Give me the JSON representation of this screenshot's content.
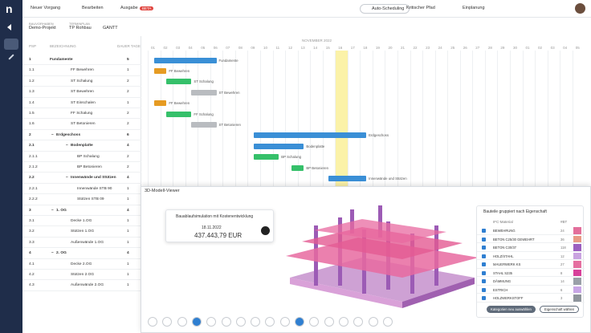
{
  "toolbar": {
    "new": "Neuer Vorgang",
    "edit": "Bearbeiten",
    "export": "Ausgabe",
    "badge": "BETA",
    "auto": "Auto-Scheduling",
    "critical": "Kritischer Pfad",
    "plan": "Einplanung"
  },
  "breadcrumb": {
    "project_label": "BAUVORHABEN",
    "project": "Demo-Projekt",
    "plan_label": "TERMINPLAN",
    "plan": "TP Rohbau",
    "view": "GANTT"
  },
  "table": {
    "headers": [
      "PSP",
      "Bezeichnung",
      "Dauer Tage"
    ],
    "rows": [
      [
        "1",
        "Fundamente",
        5
      ],
      [
        "1.1",
        "FF Bewehren",
        1
      ],
      [
        "1.2",
        "ST Schalung",
        2
      ],
      [
        "1.3",
        "ST Bewehren",
        2
      ],
      [
        "1.4",
        "ST Einschalen",
        1
      ],
      [
        "1.5",
        "FF Schalung",
        2
      ],
      [
        "1.6",
        "ST Betonieren",
        2
      ],
      [
        "2",
        "Erdgeschoss",
        6
      ],
      [
        "2.1",
        "Bodenplatte",
        4
      ],
      [
        "2.1.1",
        "BP Schalung",
        2
      ],
      [
        "2.1.2",
        "BP Betonieren",
        2
      ],
      [
        "2.2",
        "Innenwände und Stützen",
        4
      ],
      [
        "2.2.1",
        "Innenwände STB 90",
        1
      ],
      [
        "2.2.2",
        "Stützen STB 09",
        1
      ],
      [
        "3",
        "1. OG",
        4
      ],
      [
        "3.1",
        "Decke 1.OG",
        1
      ],
      [
        "3.2",
        "Stützen 1.OG",
        1
      ],
      [
        "3.3",
        "Außenwände 1.OG",
        1
      ],
      [
        "4",
        "2. OG",
        4
      ],
      [
        "4.1",
        "Decke 2.OG",
        1
      ],
      [
        "4.2",
        "Stützen 2.OG",
        1
      ],
      [
        "4.3",
        "Außenwände 2.OG",
        1
      ]
    ]
  },
  "gantt": {
    "month": "NOVEMBER 2022",
    "days": [
      "01",
      "02",
      "03",
      "04",
      "05",
      "06",
      "07",
      "08",
      "09",
      "10",
      "11",
      "12",
      "13",
      "14",
      "15",
      "16",
      "17",
      "18",
      "19",
      "20",
      "21",
      "22",
      "23",
      "24",
      "25",
      "26",
      "27",
      "28",
      "29",
      "30",
      "01",
      "02",
      "03",
      "04",
      "05"
    ],
    "labels": [
      "Fundamente",
      "FF Bewehren",
      "ST Schalung",
      "ST Bewehren",
      "FF Bewehren",
      "FF Schalung",
      "ST Betonieren",
      "Erdgeschoss",
      "Bodenplatte",
      "BP Schalung",
      "BP Betonieren",
      "Innenwände und Stützen"
    ]
  },
  "viewer": {
    "title": "3D-Modell-Viewer",
    "sim_title": "Bauablaufsimulation mit Kostenentwicklung",
    "date": "18.11.2022",
    "cost": "437.443,79 EUR",
    "panel": {
      "title": "Bauteile gruppiert nach Eigenschaft",
      "headers": [
        "IFC-Material",
        "#BT"
      ],
      "rows": [
        {
          "name": "BEWEHRUNG",
          "count": "24",
          "color": "#e36f9b"
        },
        {
          "name": "BETON C25/30 GEWEHRT",
          "count": "36",
          "color": "#e89a86"
        },
        {
          "name": "BETON C30/37",
          "count": "118",
          "color": "#9b5fc0"
        },
        {
          "name": "HOLZ/STAHL",
          "count": "12",
          "color": "#c9a3e0"
        },
        {
          "name": "MAUERWERK KS",
          "count": "27",
          "color": "#e56fa0"
        },
        {
          "name": "STAHL S235",
          "count": "8",
          "color": "#d8409a"
        },
        {
          "name": "DÄMMUNG",
          "count": "14",
          "color": "#9aa0a8"
        },
        {
          "name": "ESTRICH",
          "count": "6",
          "color": "#c8a6e6"
        },
        {
          "name": "HOLZWERKSTOFF",
          "count": "3",
          "color": "#8f959c"
        }
      ],
      "buttons": [
        "Kategorien neu auswählen",
        "Eigenschaft wählen"
      ]
    }
  }
}
